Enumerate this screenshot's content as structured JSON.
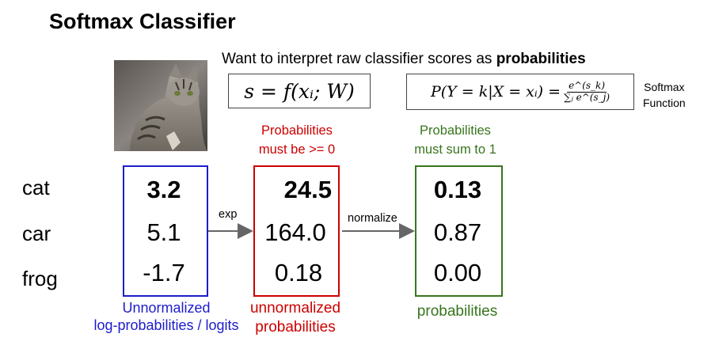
{
  "title": "Softmax Classifier",
  "subtitle_prefix": "Want to interpret raw classifier scores as ",
  "subtitle_bold": "probabilities",
  "formula_score": "s = f(xᵢ; W)",
  "formula_softmax_lhs": "P(Y = k|X = xᵢ) =",
  "formula_softmax_num": "e^(s_k)",
  "formula_softmax_den": "∑ⱼ e^(s_j)",
  "function_label_line1": "Softmax",
  "function_label_line2": "Function",
  "note_positive_line1": "Probabilities",
  "note_positive_line2": "must be >= 0",
  "note_sum_line1": "Probabilities",
  "note_sum_line2": "must sum to 1",
  "classes": [
    "cat",
    "car",
    "frog"
  ],
  "scores": [
    "3.2",
    "5.1",
    "-1.7"
  ],
  "exp_scores": [
    "24.5",
    "164.0",
    "0.18"
  ],
  "probabilities": [
    "0.13",
    "0.87",
    "0.00"
  ],
  "arrow_exp_label": "exp",
  "arrow_normalize_label": "normalize",
  "caption_logits_line1": "Unnormalized",
  "caption_logits_line2": "log-probabilities / logits",
  "caption_exp_line1": "unnormalized",
  "caption_exp_line2": "probabilities",
  "caption_prob": "probabilities",
  "colors": {
    "logits": "#1c1ccc",
    "unnormalized": "#cc0000",
    "probabilities": "#38761d"
  }
}
